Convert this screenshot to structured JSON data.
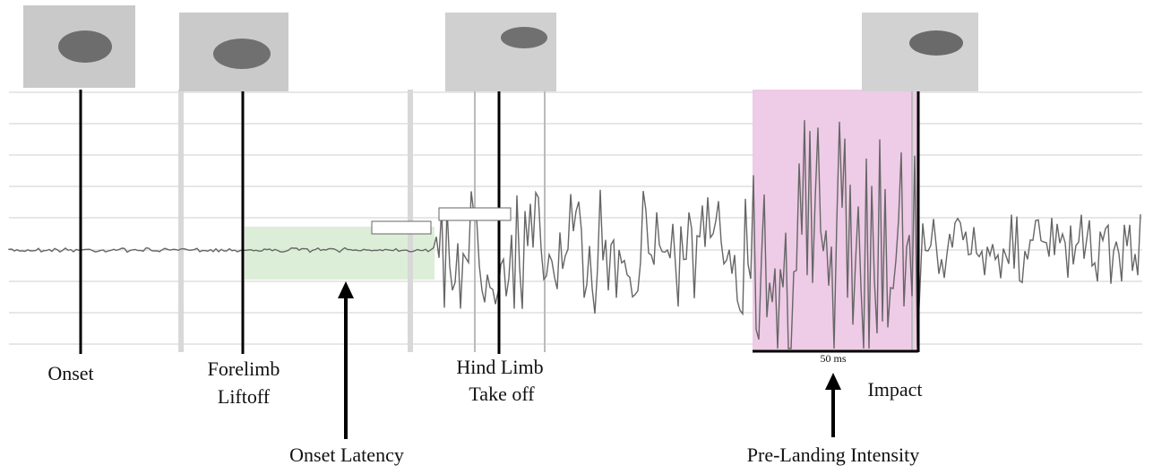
{
  "events": [
    {
      "lines": [
        "Onset"
      ]
    },
    {
      "lines": [
        "Forelimb",
        "Liftoff"
      ]
    },
    {
      "lines": [
        "Hind Limb",
        "Take off"
      ]
    },
    {
      "lines": [
        "Impact"
      ]
    }
  ],
  "measures": [
    {
      "label": "Onset Latency"
    },
    {
      "label": "Pre-Landing Intensity"
    }
  ],
  "scale_bar": "50 ms"
}
